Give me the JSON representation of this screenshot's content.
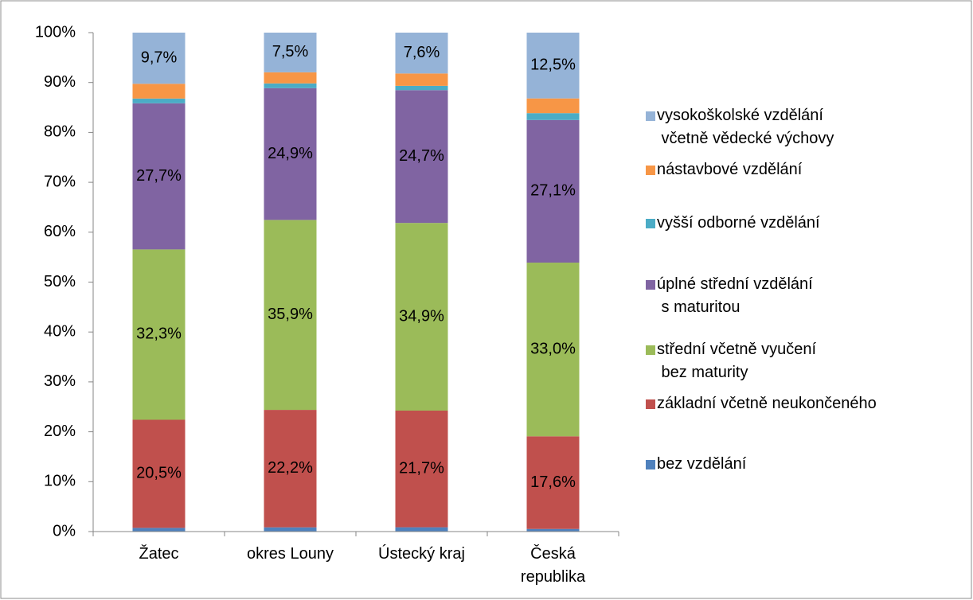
{
  "chart_data": {
    "type": "bar",
    "stacking": "percent",
    "categories": [
      "Žatec",
      "okres Louny",
      "Ústecký kraj",
      "Česká\nrepublika"
    ],
    "series": [
      {
        "name": "bez vzdělání",
        "color": "#4f81bd",
        "values": [
          0.7,
          0.8,
          0.8,
          0.5
        ],
        "value_labels": [
          null,
          null,
          null,
          null
        ]
      },
      {
        "name": "základní včetně neukončeného",
        "color": "#c0504d",
        "values": [
          20.5,
          22.2,
          21.7,
          17.6
        ],
        "value_labels": [
          "20,5%",
          "22,2%",
          "21,7%",
          "17,6%"
        ]
      },
      {
        "name": "střední včetně vyučení\n bez maturity",
        "color": "#9bbb59",
        "values": [
          32.3,
          35.9,
          34.9,
          33.0
        ],
        "value_labels": [
          "32,3%",
          "35,9%",
          "34,9%",
          "33,0%"
        ]
      },
      {
        "name": "úplné střední vzdělání\n s maturitou",
        "color": "#8064a2",
        "values": [
          27.7,
          24.9,
          24.7,
          27.1
        ],
        "value_labels": [
          "27,7%",
          "24,9%",
          "24,7%",
          "27,1%"
        ]
      },
      {
        "name": "vyšší odborné vzdělání",
        "color": "#4bacc6",
        "values": [
          0.9,
          0.9,
          0.8,
          1.3
        ],
        "value_labels": [
          null,
          null,
          null,
          null
        ]
      },
      {
        "name": "nástavbové vzdělání",
        "color": "#f79646",
        "values": [
          2.8,
          2.1,
          2.3,
          2.8
        ],
        "value_labels": [
          null,
          null,
          null,
          null
        ]
      },
      {
        "name": "vysokoškolské vzdělání\n včetně vědecké výchovy",
        "color": "#95b3d7",
        "values": [
          9.7,
          7.5,
          7.6,
          12.5
        ],
        "value_labels": [
          "9,7%",
          "7,5%",
          "7,6%",
          "12,5%"
        ]
      }
    ],
    "ylim": [
      0,
      100
    ],
    "yticks": [
      {
        "value": 0,
        "label": "0%"
      },
      {
        "value": 10,
        "label": "10%"
      },
      {
        "value": 20,
        "label": "20%"
      },
      {
        "value": 30,
        "label": "30%"
      },
      {
        "value": 40,
        "label": "40%"
      },
      {
        "value": 50,
        "label": "50%"
      },
      {
        "value": 60,
        "label": "60%"
      },
      {
        "value": 70,
        "label": "70%"
      },
      {
        "value": 80,
        "label": "80%"
      },
      {
        "value": 90,
        "label": "90%"
      },
      {
        "value": 100,
        "label": "100%"
      }
    ],
    "legend": "right"
  }
}
